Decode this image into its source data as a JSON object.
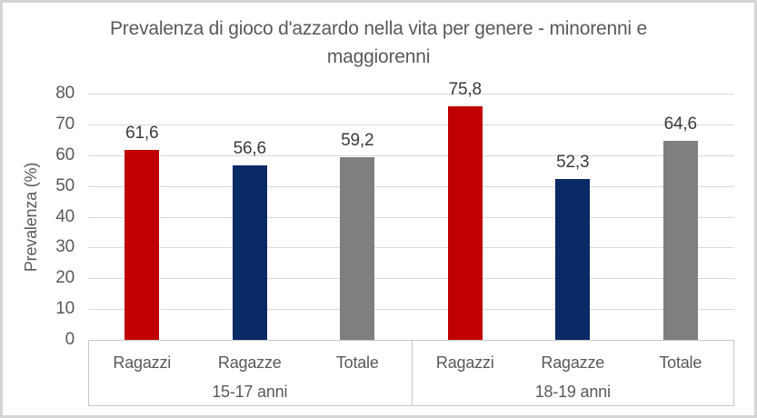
{
  "frame": {
    "background": "#ffffff",
    "border_color": "#d4d4d4"
  },
  "chart_data": {
    "type": "bar",
    "title": "Prevalenza di gioco d'azzardo nella vita per genere - minorenni e maggiorenni",
    "xlabel": "",
    "ylabel": "Prevalenza (%)",
    "ylim": [
      0,
      80
    ],
    "ytick_step": 10,
    "grid": true,
    "legend": "none",
    "decimal_separator": ",",
    "text_color": "#595959",
    "value_label_color": "#3a3a3a",
    "gridline_color": "#d9d9d9",
    "axis_line_color": "#c6c6c6",
    "series_colors": {
      "Ragazzi": "#c00000",
      "Ragazze": "#0a2a66",
      "Totale": "#7f7f7f"
    },
    "groups": [
      {
        "label": "15-17 anni",
        "categories": [
          "Ragazzi",
          "Ragazze",
          "Totale"
        ],
        "values": [
          61.6,
          56.6,
          59.2
        ],
        "value_labels": [
          "61,6",
          "56,6",
          "59,2"
        ]
      },
      {
        "label": "18-19 anni",
        "categories": [
          "Ragazzi",
          "Ragazze",
          "Totale"
        ],
        "values": [
          75.8,
          52.3,
          64.6
        ],
        "value_labels": [
          "75,8",
          "52,3",
          "64,6"
        ]
      }
    ]
  }
}
